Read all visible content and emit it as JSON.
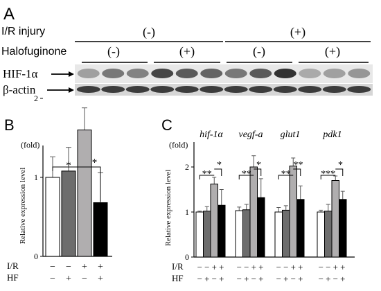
{
  "panel_a": {
    "label": "A",
    "ir_label": "I/R injury",
    "hf_label": "Halofuginone",
    "ir_groups": [
      "(-)",
      "(+)"
    ],
    "hf_groups": [
      "(-)",
      "(+)",
      "(-)",
      "(+)"
    ],
    "blots": [
      {
        "name": "HIF-1α",
        "intensities": [
          0.35,
          0.55,
          0.5,
          0.8,
          0.7,
          0.65,
          0.55,
          0.7,
          0.9,
          0.3,
          0.35,
          0.4
        ]
      },
      {
        "name": "β-actin",
        "intensities": [
          0.85,
          0.85,
          0.85,
          0.85,
          0.85,
          0.85,
          0.85,
          0.85,
          0.85,
          0.85,
          0.85,
          0.85
        ]
      }
    ]
  },
  "panel_b": {
    "label": "B",
    "unit": "(fold)",
    "ylabel": "Relative expression level",
    "row_labels": [
      "I/R",
      "HF"
    ],
    "ir_marks": [
      "−",
      "−",
      "+",
      "+"
    ],
    "hf_marks": [
      "−",
      "+",
      "−",
      "+"
    ],
    "significance": [
      "*",
      "*"
    ]
  },
  "panel_c": {
    "label": "C",
    "unit": "(fold)",
    "ylabel": "Relative expression level",
    "row_labels": [
      "I/R",
      "HF"
    ],
    "ir_marks": [
      "−",
      "−",
      "+",
      "+"
    ],
    "hf_marks": [
      "−",
      "+",
      "−",
      "+"
    ],
    "significance": {
      "hif1a": [
        "**",
        "*"
      ],
      "vegfa": [
        "**",
        "*"
      ],
      "glut1": [
        "**",
        "**"
      ],
      "pdk1": [
        "***",
        "*"
      ]
    }
  },
  "chart_data": [
    {
      "type": "bar",
      "title": "",
      "xlabel": "",
      "ylabel": "Relative expression level",
      "ylim": [
        0,
        2.3
      ],
      "yticks": [
        0,
        1,
        2
      ],
      "categories": [
        "−/−",
        "−/+",
        "+/−",
        "+/+"
      ],
      "values": [
        1.0,
        1.08,
        1.6,
        0.68
      ],
      "errors": [
        0.26,
        0.3,
        0.28,
        0.38
      ],
      "colors": [
        "#ffffff",
        "#6d6d6d",
        "#b0aeaf",
        "#000000"
      ]
    },
    {
      "type": "bar",
      "title": "",
      "xlabel": "",
      "ylabel": "Relative expression level",
      "ylim": [
        0,
        2.4
      ],
      "yticks": [
        0,
        1,
        2
      ],
      "categories": [
        "hif-1α",
        "vegf-a",
        "glut1",
        "pdk1"
      ],
      "series": [
        {
          "values": [
            1.0,
            1.03,
            1.0,
            1.0
          ],
          "errors": [
            0.02,
            0.08,
            0.1,
            0.04
          ],
          "color": "#ffffff"
        },
        {
          "values": [
            1.02,
            1.05,
            1.04,
            1.02
          ],
          "errors": [
            0.1,
            0.12,
            0.1,
            0.15
          ],
          "color": "#6d6d6d"
        },
        {
          "values": [
            1.62,
            2.0,
            2.02,
            1.7
          ],
          "errors": [
            0.15,
            0.25,
            0.18,
            0.1
          ],
          "color": "#b0aeaf"
        },
        {
          "values": [
            1.15,
            1.32,
            1.28,
            1.28
          ],
          "errors": [
            0.35,
            0.42,
            0.3,
            0.18
          ],
          "color": "#000000"
        }
      ]
    }
  ]
}
